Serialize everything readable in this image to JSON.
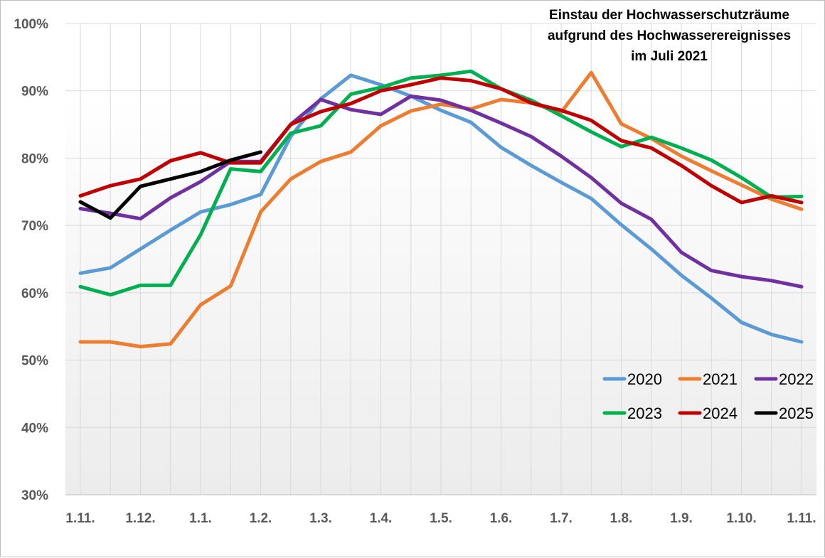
{
  "chart_data": {
    "type": "line",
    "title_lines": [
      "Einstau der Hochwasserschutzräume",
      "aufgrund des Hochwasserereignisses",
      "im Juli 2021"
    ],
    "xlabel": "",
    "ylabel": "",
    "ylim": [
      30,
      100
    ],
    "yticks": [
      30,
      40,
      50,
      60,
      70,
      80,
      90,
      100
    ],
    "ytick_labels": [
      "30%",
      "40%",
      "50%",
      "60%",
      "70%",
      "80%",
      "90%",
      "100%"
    ],
    "xlim": [
      0,
      24
    ],
    "xticks": [
      0,
      2,
      4,
      6,
      8,
      10,
      12,
      14,
      16,
      18,
      20,
      22,
      24
    ],
    "xtick_labels": [
      "1.11.",
      "1.12.",
      "1.1.",
      "1.2.",
      "1.3.",
      "1.4.",
      "1.5.",
      "1.6.",
      "1.7.",
      "1.8.",
      "1.9.",
      "1.10.",
      "1.11."
    ],
    "grid": "horizontal and vertical",
    "legend_position": "bottom-right",
    "series": [
      {
        "name": "2020",
        "color": "#5b9bd5",
        "values": [
          62.9,
          63.7,
          66.5,
          69.3,
          72.0,
          73.1,
          74.6,
          83.2,
          88.8,
          92.3,
          90.9,
          89.2,
          87.1,
          85.3,
          81.6,
          78.9,
          76.4,
          74.0,
          70.1,
          66.5,
          62.6,
          59.2,
          55.6,
          53.8,
          52.7
        ]
      },
      {
        "name": "2021",
        "color": "#ed7d31",
        "values": [
          52.7,
          52.7,
          52.0,
          52.4,
          58.2,
          61.0,
          72.0,
          76.9,
          79.5,
          80.9,
          84.8,
          87.0,
          88.0,
          87.3,
          88.7,
          88.2,
          86.8,
          92.7,
          85.1,
          82.9,
          80.3,
          78.1,
          76.0,
          73.9,
          72.4
        ]
      },
      {
        "name": "2022",
        "color": "#7030a0",
        "values": [
          72.5,
          71.8,
          71.0,
          74.1,
          76.5,
          79.5,
          79.5,
          85.0,
          88.7,
          87.2,
          86.5,
          89.2,
          88.6,
          87.1,
          85.2,
          83.2,
          80.3,
          77.1,
          73.3,
          70.9,
          66.0,
          63.3,
          62.4,
          61.8,
          60.9
        ]
      },
      {
        "name": "2023",
        "color": "#00b050",
        "values": [
          60.9,
          59.7,
          61.1,
          61.1,
          68.6,
          78.4,
          78.0,
          83.7,
          84.8,
          89.5,
          90.5,
          91.9,
          92.3,
          92.9,
          90.3,
          88.6,
          86.3,
          83.9,
          81.7,
          83.1,
          81.5,
          79.7,
          77.1,
          74.2,
          74.3
        ]
      },
      {
        "name": "2024",
        "color": "#c00000",
        "values": [
          74.4,
          75.9,
          76.9,
          79.6,
          80.8,
          79.3,
          79.3,
          85.0,
          86.9,
          88.1,
          90.0,
          90.9,
          91.9,
          91.5,
          90.3,
          88.2,
          87.1,
          85.6,
          82.6,
          81.5,
          78.9,
          75.9,
          73.4,
          74.4,
          73.4
        ]
      },
      {
        "name": "2025",
        "color": "#000000",
        "values": [
          73.5,
          71.1,
          75.8,
          76.9,
          78.0,
          79.7,
          80.9
        ]
      }
    ]
  }
}
